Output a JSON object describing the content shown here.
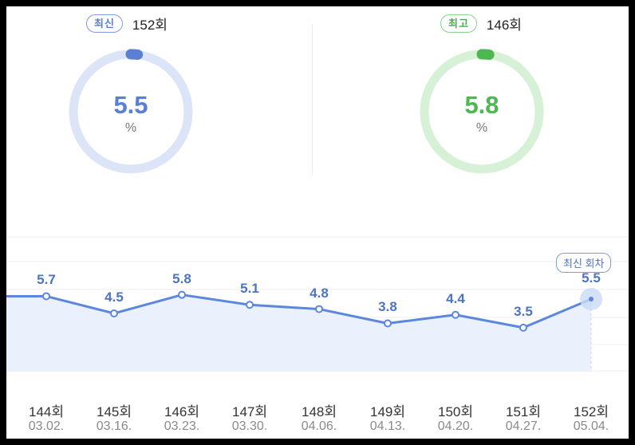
{
  "summary": {
    "latest": {
      "badge": "최신",
      "round": "152회",
      "value": "5.5",
      "unit": "%",
      "level": 0.055,
      "color": "#5b7fd4",
      "track": "#dce5f8",
      "icon": "ring-gauge-icon"
    },
    "best": {
      "badge": "최고",
      "round": "146회",
      "value": "5.8",
      "unit": "%",
      "level": 0.058,
      "color": "#4cb84f",
      "track": "#d6f1d6",
      "icon": "ring-gauge-icon"
    }
  },
  "latest_tag": "최신 회차",
  "chart_data": {
    "type": "area",
    "categories": [
      "144회",
      "145회",
      "146회",
      "147회",
      "148회",
      "149회",
      "150회",
      "151회",
      "152회"
    ],
    "dates": [
      "03.02.",
      "03.16.",
      "03.23.",
      "03.30.",
      "04.06.",
      "04.13.",
      "04.20.",
      "04.27.",
      "05.04."
    ],
    "values": [
      5.7,
      4.5,
      5.8,
      5.1,
      4.8,
      3.8,
      4.4,
      3.5,
      5.5
    ],
    "value_labels": [
      "5.7",
      "4.5",
      "5.8",
      "5.1",
      "4.8",
      "3.8",
      "4.4",
      "3.5",
      "5.5"
    ],
    "highlight_index": 8,
    "grid": true,
    "colors": {
      "line": "#5b88dc",
      "fill": "#eaf1fd",
      "grid": "#eeeeee",
      "marker_halo": "#c9dbf6"
    }
  }
}
